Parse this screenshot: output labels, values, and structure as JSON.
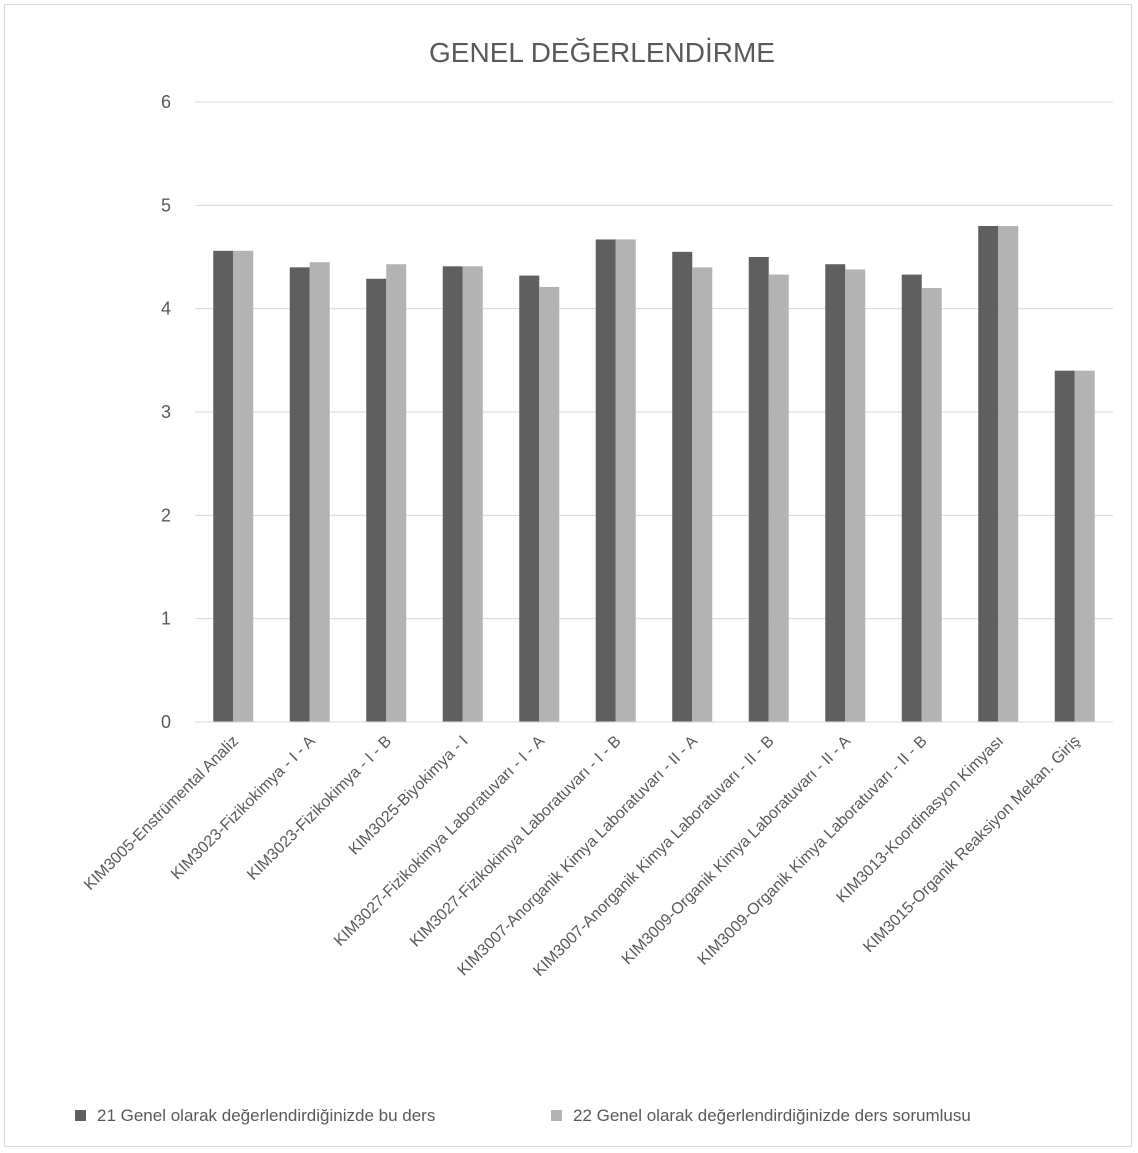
{
  "chart_data": {
    "type": "bar",
    "title": "GENEL DEĞERLENDİRME",
    "xlabel": "",
    "ylabel": "",
    "ylim": [
      0,
      6
    ],
    "yticks": [
      0,
      1,
      2,
      3,
      4,
      5,
      6
    ],
    "grid": true,
    "legend_position": "bottom",
    "categories": [
      "KIM3005-Enstrümental Analiz",
      "KIM3023-Fizikokimya - I - A",
      "KIM3023-Fizikokimya - I - B",
      "KIM3025-Biyokimya - I",
      "KIM3027-Fizikokimya Laboratuvarı - I - A",
      "KIM3027-Fizikokimya Laboratuvarı - I - B",
      "KIM3007-Anorganik Kimya Laboratuvarı - II - A",
      "KIM3007-Anorganik Kimya Laboratuvarı - II - B",
      "KIM3009-Organik Kimya Laboratuvarı - II - A",
      "KIM3009-Organik Kimya Laboratuvarı - II - B",
      "KIM3013-Koordinasyon Kimyası",
      "KIM3015-Organik Reaksiyon Mekan. Giriş"
    ],
    "series": [
      {
        "name": "21 Genel olarak değerlendirdiğinizde bu ders",
        "color": "#5f5f5f",
        "values": [
          4.56,
          4.4,
          4.29,
          4.41,
          4.32,
          4.67,
          4.55,
          4.5,
          4.43,
          4.33,
          4.8,
          3.4
        ]
      },
      {
        "name": "22 Genel olarak değerlendirdiğinizde ders sorumlusu",
        "color": "#b3b3b3",
        "values": [
          4.56,
          4.45,
          4.43,
          4.41,
          4.21,
          4.67,
          4.4,
          4.33,
          4.38,
          4.2,
          4.8,
          3.4
        ]
      }
    ]
  }
}
